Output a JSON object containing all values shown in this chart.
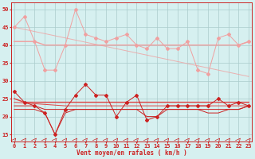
{
  "x": [
    0,
    1,
    2,
    3,
    4,
    5,
    6,
    7,
    8,
    9,
    10,
    11,
    12,
    13,
    14,
    15,
    16,
    17,
    18,
    19,
    20,
    21,
    22,
    23
  ],
  "rafales_jagged": [
    45,
    48,
    41,
    33,
    33,
    40,
    50,
    43,
    42,
    41,
    42,
    43,
    40,
    39,
    42,
    39,
    39,
    41,
    33,
    32,
    42,
    43,
    40,
    41
  ],
  "rafales_flat": [
    41,
    41,
    41,
    40,
    40,
    40,
    40,
    40,
    40,
    40,
    40,
    40,
    40,
    40,
    40,
    40,
    40,
    40,
    40,
    40,
    40,
    40,
    40,
    41
  ],
  "rafales_trend": [
    45,
    44.4,
    43.8,
    43.2,
    42.6,
    42.0,
    41.4,
    40.8,
    40.2,
    39.6,
    39.0,
    38.4,
    37.8,
    37.2,
    36.6,
    36.0,
    35.4,
    34.8,
    34.2,
    33.6,
    33.0,
    32.4,
    31.8,
    31.2
  ],
  "vent_jagged": [
    27,
    24,
    23,
    21,
    15,
    22,
    26,
    29,
    26,
    26,
    20,
    24,
    26,
    19,
    20,
    23,
    23,
    23,
    23,
    23,
    25,
    23,
    24,
    23
  ],
  "vent_flat1": [
    25,
    24,
    24,
    24,
    24,
    24,
    24,
    24,
    24,
    24,
    24,
    24,
    24,
    24,
    24,
    24,
    24,
    24,
    24,
    24,
    24,
    24,
    24,
    24
  ],
  "vent_flat2": [
    23,
    23,
    23,
    22,
    22,
    22,
    22,
    22,
    22,
    22,
    22,
    22,
    22,
    22,
    22,
    22,
    22,
    22,
    22,
    22,
    22,
    22,
    22,
    23
  ],
  "vent_jagged2": [
    22,
    22,
    22,
    21,
    15,
    21,
    22,
    22,
    22,
    22,
    22,
    22,
    22,
    20,
    20,
    22,
    22,
    22,
    22,
    21,
    21,
    22,
    22,
    23
  ],
  "vent_trend": [
    24,
    23.8,
    23.6,
    23.4,
    23.2,
    23.0,
    23.0,
    23.0,
    23.0,
    23.0,
    23.0,
    23.0,
    23.0,
    23.0,
    23.0,
    23.0,
    23.0,
    23.0,
    23.0,
    23.0,
    23.0,
    23.0,
    23.0,
    23.0
  ],
  "bg_color": "#d6f0f0",
  "grid_color": "#aacccc",
  "color_light_pink": "#f0a0a0",
  "color_dark_red": "#cc2222",
  "color_medium_red": "#dd4444",
  "xlabel": "Vent moyen/en rafales ( km/h )",
  "yticks": [
    15,
    20,
    25,
    30,
    35,
    40,
    45,
    50
  ],
  "ylim": [
    13,
    52
  ],
  "xlim": [
    -0.3,
    23.3
  ]
}
